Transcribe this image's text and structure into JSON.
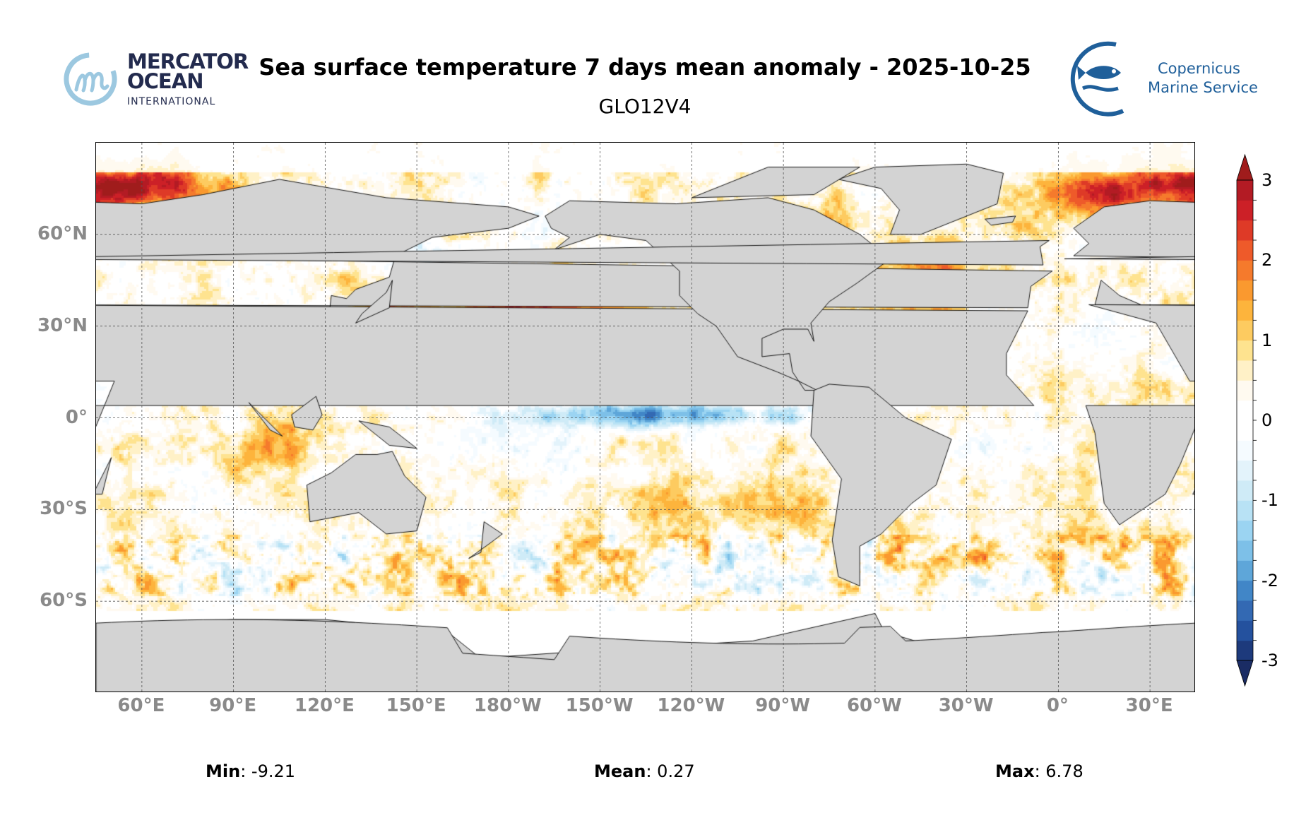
{
  "header": {
    "title": "Sea surface temperature 7 days mean anomaly - 2025-10-25",
    "subtitle": "GLO12V4"
  },
  "logos": {
    "left": {
      "line1": "MERCATOR",
      "line2": "OCEAN",
      "line3": "INTERNATIONAL",
      "color": "#232b4e",
      "accent": "#9cc8e0"
    },
    "right": {
      "line1": "Copernicus",
      "line2": "Marine Service",
      "color": "#1f5f9a"
    }
  },
  "map": {
    "projection": "plate-carree",
    "lon_range": [
      45,
      405
    ],
    "lat_range": [
      -90,
      90
    ],
    "land_color": "#d3d3d3",
    "gridlines": true,
    "lat_ticks": [
      {
        "value": 60,
        "label": "60°N"
      },
      {
        "value": 30,
        "label": "30°N"
      },
      {
        "value": 0,
        "label": "0°"
      },
      {
        "value": -30,
        "label": "30°S"
      },
      {
        "value": -60,
        "label": "60°S"
      }
    ],
    "lon_ticks": [
      {
        "value": 60,
        "label": "60°E"
      },
      {
        "value": 90,
        "label": "90°E"
      },
      {
        "value": 120,
        "label": "120°E"
      },
      {
        "value": 150,
        "label": "150°E"
      },
      {
        "value": 180,
        "label": "180°W"
      },
      {
        "value": 210,
        "label": "150°W"
      },
      {
        "value": 240,
        "label": "120°W"
      },
      {
        "value": 270,
        "label": "90°W"
      },
      {
        "value": 300,
        "label": "60°W"
      },
      {
        "value": 330,
        "label": "30°W"
      },
      {
        "value": 360,
        "label": "0°"
      },
      {
        "value": 390,
        "label": "30°E"
      }
    ]
  },
  "colorbar": {
    "min": -3,
    "max": 3,
    "step": 0.25,
    "extend": "both",
    "ticks": [
      {
        "value": 3,
        "label": "3"
      },
      {
        "value": 2,
        "label": "2"
      },
      {
        "value": 1,
        "label": "1"
      },
      {
        "value": 0,
        "label": "0"
      },
      {
        "value": -1,
        "label": "-1"
      },
      {
        "value": -2,
        "label": "-2"
      },
      {
        "value": -3,
        "label": "-3"
      }
    ],
    "colors_low_to_high": [
      "#1d3a7c",
      "#24519e",
      "#3369b3",
      "#4186c7",
      "#5ea6d9",
      "#7dc0e8",
      "#9bd4f2",
      "#b8e2f5",
      "#cfebf7",
      "#e3f3fb",
      "#f5fbff",
      "#ffffff",
      "#ffffff",
      "#fffaf0",
      "#fff1c7",
      "#fee38f",
      "#fdcb60",
      "#fdb43c",
      "#fa992f",
      "#f57a2c",
      "#ee5a2a",
      "#de3a27",
      "#cc2027",
      "#b31b24"
    ],
    "under_color": "#1a2c64",
    "over_color": "#a01c1c"
  },
  "stats": {
    "min_label": "Min",
    "min_value": ": -9.21",
    "mean_label": "Mean",
    "mean_value": ": 0.27",
    "max_label": "Max",
    "max_value": ": 6.78"
  }
}
